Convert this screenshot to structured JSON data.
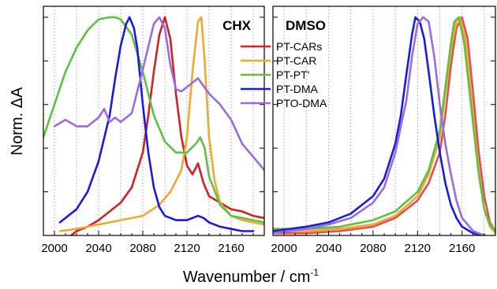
{
  "figure": {
    "xlabel": "Wavenumber / cm",
    "xlabel_sup": "-1",
    "ylabel": "Norm. ΔA"
  },
  "chart_data": [
    {
      "type": "line",
      "title": "CHX",
      "xlim": [
        1990,
        2190
      ],
      "ylim": [
        0,
        1.05
      ],
      "xticks": [
        2000,
        2040,
        2080,
        2120,
        2160
      ],
      "grid": "vertical dotted",
      "legend": "top-right",
      "series": [
        {
          "name": "PT-CARs",
          "color": "#d42020",
          "x": [
            2010,
            2020,
            2030,
            2040,
            2050,
            2060,
            2070,
            2080,
            2085,
            2090,
            2095,
            2100,
            2105,
            2110,
            2115,
            2120,
            2125,
            2130,
            2135,
            2140,
            2150,
            2160,
            2170,
            2180,
            2190
          ],
          "y": [
            -0.02,
            0.02,
            0.04,
            0.07,
            0.11,
            0.15,
            0.22,
            0.38,
            0.55,
            0.75,
            0.92,
            1.0,
            0.9,
            0.65,
            0.45,
            0.32,
            0.28,
            0.33,
            0.24,
            0.18,
            0.15,
            0.12,
            0.11,
            0.09,
            0.08
          ]
        },
        {
          "name": "PT-CAR",
          "color": "#f0a830",
          "x": [
            2005,
            2020,
            2040,
            2060,
            2080,
            2095,
            2105,
            2115,
            2120,
            2125,
            2130,
            2133,
            2136,
            2140,
            2145,
            2150,
            2160,
            2170,
            2180,
            2190
          ],
          "y": [
            0.02,
            0.03,
            0.05,
            0.07,
            0.09,
            0.14,
            0.2,
            0.3,
            0.45,
            0.75,
            0.98,
            1.0,
            0.8,
            0.45,
            0.25,
            0.15,
            0.09,
            0.07,
            0.06,
            0.05
          ]
        },
        {
          "name": "PT-PT'",
          "color": "#60c040",
          "x": [
            1990,
            2000,
            2010,
            2020,
            2030,
            2040,
            2050,
            2055,
            2060,
            2070,
            2080,
            2090,
            2100,
            2110,
            2120,
            2128,
            2132,
            2136,
            2140,
            2150,
            2160,
            2170,
            2180,
            2190
          ],
          "y": [
            0.45,
            0.6,
            0.75,
            0.86,
            0.94,
            0.99,
            1.0,
            1.0,
            0.99,
            0.92,
            0.75,
            0.55,
            0.43,
            0.38,
            0.38,
            0.42,
            0.45,
            0.4,
            0.27,
            0.14,
            0.09,
            0.08,
            0.07,
            0.06
          ]
        },
        {
          "name": "PT-DMA",
          "color": "#1a1ae6",
          "x": [
            2005,
            2020,
            2030,
            2040,
            2050,
            2055,
            2060,
            2065,
            2068,
            2072,
            2075,
            2080,
            2085,
            2090,
            2095,
            2100,
            2110,
            2120,
            2130,
            2135,
            2140,
            2150,
            2160,
            2170,
            2180
          ],
          "y": [
            0.06,
            0.12,
            0.2,
            0.34,
            0.55,
            0.72,
            0.87,
            0.97,
            1.0,
            0.95,
            0.86,
            0.6,
            0.38,
            0.22,
            0.13,
            0.09,
            0.07,
            0.07,
            0.09,
            0.08,
            0.06,
            0.04,
            0.03,
            0.02,
            0.02
          ]
        },
        {
          "name": "PTO-DMA",
          "color": "#9a6cde",
          "x": [
            2000,
            2010,
            2020,
            2030,
            2040,
            2045,
            2050,
            2055,
            2060,
            2070,
            2080,
            2090,
            2095,
            2100,
            2105,
            2110,
            2115,
            2120,
            2130,
            2140,
            2150,
            2160,
            2170,
            2180,
            2190
          ],
          "y": [
            0.5,
            0.53,
            0.5,
            0.5,
            0.54,
            0.58,
            0.52,
            0.54,
            0.52,
            0.56,
            0.76,
            0.97,
            1.0,
            0.95,
            0.78,
            0.67,
            0.66,
            0.68,
            0.72,
            0.65,
            0.6,
            0.53,
            0.42,
            0.36,
            0.3
          ]
        }
      ]
    },
    {
      "type": "line",
      "title": "DMSO",
      "xlim": [
        1990,
        2190
      ],
      "ylim": [
        0,
        1.05
      ],
      "xticks": [
        2000,
        2040,
        2080,
        2120,
        2160
      ],
      "grid": "vertical dotted",
      "series": [
        {
          "name": "PT-CARs",
          "color": "#e05050",
          "x": [
            1990,
            2020,
            2050,
            2080,
            2100,
            2120,
            2130,
            2140,
            2145,
            2150,
            2155,
            2160,
            2165,
            2170,
            2175,
            2180,
            2185,
            2190
          ],
          "y": [
            0.01,
            0.01,
            0.02,
            0.04,
            0.08,
            0.16,
            0.24,
            0.38,
            0.55,
            0.78,
            0.95,
            1.0,
            0.9,
            0.65,
            0.38,
            0.18,
            0.06,
            0.02
          ]
        },
        {
          "name": "PT-CAR",
          "color": "#f0a830",
          "x": [
            1990,
            2020,
            2050,
            2080,
            2100,
            2120,
            2130,
            2140,
            2145,
            2150,
            2155,
            2158,
            2163,
            2168,
            2175,
            2180,
            2185,
            2190
          ],
          "y": [
            0.02,
            0.02,
            0.03,
            0.05,
            0.09,
            0.18,
            0.28,
            0.45,
            0.65,
            0.85,
            0.98,
            1.0,
            0.9,
            0.65,
            0.3,
            0.12,
            0.04,
            0.01
          ]
        },
        {
          "name": "PT-PT'",
          "color": "#60c040",
          "x": [
            1990,
            2020,
            2050,
            2080,
            2100,
            2120,
            2130,
            2140,
            2145,
            2150,
            2153,
            2157,
            2162,
            2168,
            2175,
            2180,
            2185,
            2190
          ],
          "y": [
            0.03,
            0.03,
            0.04,
            0.07,
            0.11,
            0.2,
            0.3,
            0.48,
            0.68,
            0.88,
            0.98,
            1.0,
            0.88,
            0.6,
            0.28,
            0.12,
            0.05,
            0.02
          ]
        },
        {
          "name": "PT-DMA",
          "color": "#1a1ae6",
          "x": [
            1990,
            2020,
            2040,
            2060,
            2080,
            2090,
            2100,
            2105,
            2110,
            2115,
            2118,
            2122,
            2126,
            2130,
            2135,
            2140,
            2145,
            2150,
            2155,
            2160,
            2170,
            2180
          ],
          "y": [
            0.02,
            0.04,
            0.06,
            0.1,
            0.18,
            0.26,
            0.42,
            0.55,
            0.74,
            0.92,
            1.0,
            0.98,
            0.9,
            0.75,
            0.55,
            0.38,
            0.24,
            0.14,
            0.08,
            0.04,
            0.01,
            0.0
          ]
        },
        {
          "name": "PTO-DMA",
          "color": "#9a6cde",
          "x": [
            1990,
            2020,
            2040,
            2060,
            2080,
            2090,
            2100,
            2110,
            2115,
            2120,
            2125,
            2130,
            2135,
            2140,
            2145,
            2150,
            2155,
            2160,
            2170,
            2180
          ],
          "y": [
            0.01,
            0.03,
            0.05,
            0.08,
            0.15,
            0.22,
            0.38,
            0.62,
            0.82,
            0.97,
            1.0,
            0.98,
            0.82,
            0.6,
            0.42,
            0.28,
            0.16,
            0.08,
            0.02,
            0.0
          ]
        }
      ]
    }
  ]
}
